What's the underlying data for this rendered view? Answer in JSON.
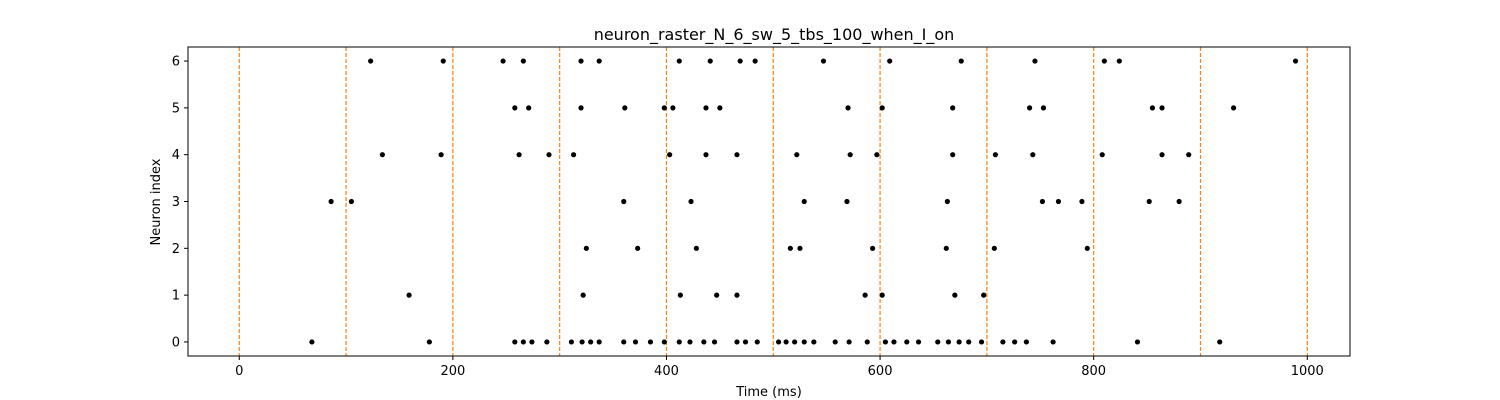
{
  "chart_data": {
    "type": "scatter",
    "title": "neuron_raster_N_6_sw_5_tbs_100_when_I_on",
    "xlabel": "Time (ms)",
    "ylabel": "Neuron index",
    "xlim": [
      -48,
      1040
    ],
    "ylim": [
      -0.3,
      6.3
    ],
    "xticks": [
      0,
      200,
      400,
      600,
      800,
      1000
    ],
    "yticks": [
      0,
      1,
      2,
      3,
      4,
      5,
      6
    ],
    "grid": false,
    "marker_color": "#000000",
    "vline_color": "#ff7f0e",
    "vlines": [
      0,
      100,
      200,
      300,
      400,
      500,
      600,
      700,
      800,
      900,
      1000
    ],
    "series": [
      {
        "neuron": 0,
        "times": [
          68,
          178,
          258,
          266,
          274,
          288,
          311,
          321,
          329,
          337,
          360,
          371,
          385,
          398,
          412,
          422,
          435,
          445,
          466,
          474,
          485,
          505,
          512,
          520,
          529,
          538,
          558,
          571,
          588,
          605,
          613,
          625,
          636,
          654,
          664,
          674,
          683,
          695,
          715,
          726,
          737,
          762,
          841,
          918
        ]
      },
      {
        "neuron": 1,
        "times": [
          159,
          322,
          413,
          447,
          466,
          586,
          602,
          670,
          697
        ]
      },
      {
        "neuron": 2,
        "times": [
          325,
          373,
          428,
          516,
          525,
          593,
          662,
          707,
          794
        ]
      },
      {
        "neuron": 3,
        "times": [
          86,
          105,
          360,
          423,
          529,
          569,
          663,
          752,
          767,
          789,
          852,
          880
        ]
      },
      {
        "neuron": 4,
        "times": [
          134,
          189,
          262,
          290,
          313,
          403,
          437,
          466,
          522,
          572,
          597,
          668,
          708,
          743,
          808,
          864,
          889
        ]
      },
      {
        "neuron": 5,
        "times": [
          258,
          271,
          320,
          361,
          398,
          406,
          437,
          450,
          570,
          602,
          668,
          740,
          753,
          855,
          864,
          931
        ]
      },
      {
        "neuron": 6,
        "times": [
          123,
          191,
          247,
          266,
          320,
          337,
          412,
          441,
          469,
          483,
          547,
          609,
          676,
          745,
          810,
          824,
          989
        ]
      }
    ]
  }
}
